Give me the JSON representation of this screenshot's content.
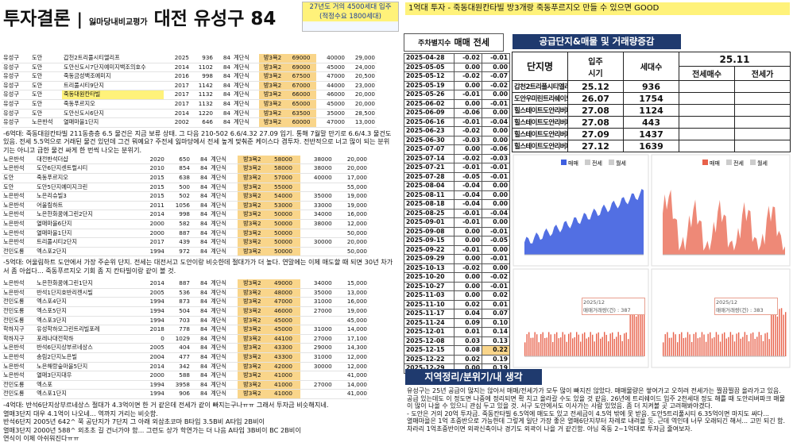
{
  "header": {
    "title": "투자결론",
    "divider": "|",
    "subtitle": "잃마당내비교평가",
    "region": "대전 유성구 84",
    "supply_note": [
      "27년도 거의 4500세대 입주",
      "(적정수요 1800세대)"
    ]
  },
  "banner": "1억대 투자 - 죽동대원칸타빌 방3개랑 죽동푸르지오 만들 수 있으면 GOOD",
  "listings": {
    "tables": [
      {
        "rows": [
          [
            "유성구",
            "도안",
            "갑천2트리풀시티엘리프",
            "2025",
            "936",
            "84",
            "계단식",
            "방3욕2",
            "69000",
            "40000",
            "29,000"
          ],
          [
            "유성구",
            "도안",
            "도안신도시7단지예미지백조의호수",
            "2014",
            "1102",
            "84",
            "계단식",
            "방3욕2",
            "69000",
            "45000",
            "24,000"
          ],
          [
            "유성구",
            "도안",
            "죽동금성백조예미지",
            "2016",
            "998",
            "84",
            "계단식",
            "방3욕2",
            "67500",
            "47000",
            "20,500"
          ],
          [
            "유성구",
            "도안",
            "트리풀시티9단지",
            "2017",
            "1142",
            "84",
            "계단식",
            "방3욕2",
            "67000",
            "44000",
            "23,000"
          ],
          [
            "유성구",
            "도안",
            "죽동대원칸타빌",
            "2017",
            "1132",
            "84",
            "계단식",
            "방3욕2",
            "66000",
            "46000",
            "20,000"
          ],
          [
            "유성구",
            "도안",
            "죽동푸르지오",
            "2017",
            "1132",
            "84",
            "계단식",
            "방3욕2",
            "65000",
            "45000",
            "20,000"
          ],
          [
            "유성구",
            "도안",
            "도안신도시6단지",
            "2014",
            "1220",
            "84",
            "계단식",
            "방3욕2",
            "63500",
            "35000",
            "28,500"
          ],
          [
            "유성구",
            "노은반석",
            "열매마을1단지",
            "2002",
            "646",
            "84",
            "계단식",
            "방3욕2",
            "60000",
            "47000",
            "13,000"
          ]
        ]
      },
      {
        "rows": [
          [
            "노은반석",
            "대전반석더샵",
            "2020",
            "650",
            "84",
            "계단식",
            "방3욕2",
            "58000",
            "38000",
            "20,000"
          ],
          [
            "노은반석",
            "도안6단지센트럴시티",
            "2010",
            "854",
            "84",
            "계단식",
            "방3욕2",
            "58000",
            "38000",
            "20,000"
          ],
          [
            "도안",
            "죽동푸르지오",
            "2015",
            "638",
            "84",
            "계단식",
            "방3욕2",
            "57000",
            "40000",
            "17,000"
          ],
          [
            "도안",
            "도안5단지예미지크린",
            "2015",
            "500",
            "84",
            "계단식",
            "방3욕2",
            "55000",
            "",
            "55,000"
          ],
          [
            "노은반석",
            "노은리슈빌3",
            "2015",
            "502",
            "84",
            "계단식",
            "방3욕2",
            "54000",
            "35000",
            "19,000"
          ],
          [
            "노은반석",
            "어울림하트",
            "2011",
            "1056",
            "84",
            "계단식",
            "방3욕2",
            "53000",
            "33000",
            "19,000"
          ],
          [
            "노은반석",
            "노은한화꿈에그린2단지",
            "2014",
            "998",
            "84",
            "계단식",
            "방3욕2",
            "50000",
            "34000",
            "16,000"
          ],
          [
            "노은반석",
            "열매마을6단지",
            "2000",
            "582",
            "84",
            "계단식",
            "방3욕2",
            "50000",
            "38000",
            "12,000"
          ],
          [
            "노은반석",
            "열매마을1단지",
            "2000",
            "887",
            "84",
            "계단식",
            "방3욕2",
            "50000",
            "",
            "50,000"
          ],
          [
            "노은반석",
            "트리풀시티2단지",
            "2017",
            "439",
            "84",
            "계단식",
            "방3욕2",
            "50000",
            "30000",
            "20,000"
          ],
          [
            "전민도룡",
            "엑스포2단지",
            "1994",
            "972",
            "84",
            "계단식",
            "방3욕2",
            "50000",
            "",
            "50,000"
          ]
        ]
      },
      {
        "rows": [
          [
            "노은반석",
            "노은한화꿈에그린1단지",
            "2014",
            "887",
            "84",
            "계단식",
            "방3욕2",
            "49000",
            "34000",
            "15,000"
          ],
          [
            "노은반석",
            "반석1단지호반리젠시빌",
            "2005",
            "536",
            "84",
            "계단식",
            "방3욕2",
            "48000",
            "35000",
            "13,000"
          ],
          [
            "전민도룡",
            "엑스포4단지",
            "1994",
            "873",
            "84",
            "계단식",
            "방3욕2",
            "47000",
            "31000",
            "16,000"
          ],
          [
            "전민도룡",
            "엑스포5단지",
            "1994",
            "504",
            "84",
            "계단식",
            "방3욕2",
            "46000",
            "27000",
            "19,000"
          ],
          [
            "전민도룡",
            "엑스포3단지",
            "1994",
            "703",
            "84",
            "계단식",
            "방3욕2",
            "45000",
            "",
            "45,000"
          ],
          [
            "학하지구",
            "유성학하모그린트리빌포레",
            "2018",
            "778",
            "84",
            "계단식",
            "방3욕2",
            "45000",
            "31000",
            "14,000"
          ],
          [
            "학하지구",
            "포레나대전학하",
            "0",
            "1029",
            "84",
            "계단식",
            "방3욕2",
            "44100",
            "27000",
            "17,100"
          ],
          [
            "노은반석",
            "반석6단지상부르네상스",
            "2005",
            "404",
            "84",
            "계단식",
            "방3욕2",
            "43300",
            "29000",
            "14,300"
          ],
          [
            "노은반석",
            "송림2단지노은빌",
            "2004",
            "477",
            "84",
            "계단식",
            "방3욕2",
            "43300",
            "31000",
            "12,000"
          ],
          [
            "노은반석",
            "노은해랑숲마을5단지",
            "2014",
            "342",
            "84",
            "계단식",
            "방3욕2",
            "42000",
            "30000",
            "12,000"
          ],
          [
            "노은반석",
            "열매3단지대우",
            "2000",
            "588",
            "84",
            "계단식",
            "방3욕2",
            "41000",
            "",
            "41,000"
          ],
          [
            "전민도룡",
            "엑스포",
            "1994",
            "3958",
            "84",
            "계단식",
            "방3욕2",
            "41000",
            "27000",
            "14,000"
          ],
          [
            "전민도룡",
            "엑스포1단지",
            "1994",
            "906",
            "84",
            "계단식",
            "방3욕2",
            "41000",
            "",
            "41,000"
          ]
        ]
      }
    ],
    "notes": [
      [
        "-6억대: 죽동대원칸타빌 211동층층 6.5 물건은 지금 보류 상태. 그 다음 210-502 6.6/4.32 27.09 입기. 통해 7월말 만기로 6.6/4.3 물건도 있음. 전세 5.5억으로 거래된 물건 있던데 그건 뭐예요? 주전세 잃마당에서 전세 높게 맞춰준 케이스다 겸투자. 전반적으로 너고 많이 되는 분위기는 아니고 급한 물건 싸게 한 번씩 나오는 분위기."
      ],
      [
        "-5억대: 어울림하트 도안에서 가장 주순위 단지. 전세는 대전서고 도안이랑 비슷한데 절대가가 더 높다. 연말에는 이제 매도할 때 되면 30년 차가서 좀 아쉽다... 죽동푸르지오 기회 좀 지 칸타빌이랑 같이 볼 것."
      ],
      [
        "-4억대: 반석6단지상부르네상스 절대가 4.3억이면 한 거 같은데 전세가 같이 빠지는구나ㅠㅠ 그래서 투자금 비슷해지네.",
        "열매3단지 대우 4.1억이 나오네... 역까지 거리는 비슷함.",
        "반석6단지 2005년 642^ 쭉 공단지가 7단지 그 아래 외삼초코마 B타입 3.5B비 A타입 2B비이",
        "열매3단지 2000년 588^ 외초초 길 건너가야 함... 그런도 상가 학연가는 더 나음 A타입 3B비이 BC 2B비이",
        "연식이 이제 아쉬워진다ㅠㅠ"
      ]
    ]
  },
  "weekly": {
    "title": "주차별지수",
    "cols": [
      "매매",
      "전세"
    ],
    "rows": [
      [
        "2025-04-28",
        "-0.02",
        "-0.01"
      ],
      [
        "2025-05-05",
        "0.00",
        "0.00"
      ],
      [
        "2025-05-12",
        "-0.02",
        "-0.07"
      ],
      [
        "2025-05-19",
        "0.00",
        "-0.02"
      ],
      [
        "2025-05-26",
        "-0.01",
        "0.00"
      ],
      [
        "2025-06-02",
        "0.00",
        "-0.01"
      ],
      [
        "2025-06-09",
        "-0.06",
        "0.00"
      ],
      [
        "2025-06-16",
        "-0.01",
        "-0.04"
      ],
      [
        "2025-06-23",
        "-0.02",
        "0.00"
      ],
      [
        "2025-06-30",
        "-0.03",
        "0.00"
      ],
      [
        "2025-07-07",
        "0.00",
        "-0.06"
      ],
      [
        "2025-07-14",
        "-0.02",
        "-0.03"
      ],
      [
        "2025-07-21",
        "-0.01",
        "-0.01"
      ],
      [
        "2025-07-28",
        "-0.05",
        "-0.01"
      ],
      [
        "2025-08-04",
        "-0.04",
        "0.00"
      ],
      [
        "2025-08-11",
        "-0.04",
        "0.00"
      ],
      [
        "2025-08-18",
        "-0.04",
        "0.00"
      ],
      [
        "2025-08-25",
        "-0.01",
        "-0.04"
      ],
      [
        "2025-09-01",
        "-0.01",
        "0.00"
      ],
      [
        "2025-09-08",
        "0.00",
        "-0.01"
      ],
      [
        "2025-09-15",
        "0.00",
        "-0.05"
      ],
      [
        "2025-09-22",
        "-0.01",
        "0.00"
      ],
      [
        "2025-09-29",
        "0.00",
        "-0.01"
      ],
      [
        "2025-10-13",
        "-0.02",
        "0.00"
      ],
      [
        "2025-10-20",
        "0.00",
        "-0.02"
      ],
      [
        "2025-10-27",
        "0.00",
        "-0.01"
      ],
      [
        "2025-11-03",
        "0.00",
        "0.02"
      ],
      [
        "2025-11-10",
        "0.02",
        "0.01"
      ],
      [
        "2025-11-17",
        "0.04",
        "0.07"
      ],
      [
        "2025-11-24",
        "0.09",
        "0.10"
      ],
      [
        "2025-12-01",
        "0.01",
        "0.14"
      ],
      [
        "2025-12-08",
        "0.03",
        "0.13"
      ],
      [
        "2025-12-15",
        "0.08",
        "0.22"
      ],
      [
        "2025-12-22",
        "0.02",
        "0.19"
      ],
      [
        "2025-12-29",
        "0.00",
        "0.19"
      ]
    ]
  },
  "supply": {
    "title": "공급단지&매물 및 거래량증감",
    "headers": [
      "단지명",
      "입주\n시기",
      "세대수",
      "25.11"
    ],
    "subheaders": [
      "전세매수",
      "전세가"
    ],
    "rows": [
      [
        "갑천2트리풀시티엘리프",
        "25.12",
        "936"
      ],
      [
        "도안우미린트리쉐이드",
        "26.07",
        "1754"
      ],
      [
        "힐스테이트도안리버파크1단지",
        "27.08",
        "1124"
      ],
      [
        "힐스테이트도안리버파크2단지",
        "27.08",
        "443"
      ],
      [
        "힐스테이트도안리버파크3단지",
        "27.09",
        "1437"
      ],
      [
        "힐스테이트도안리버파크4단지",
        "27.12",
        "1639"
      ]
    ]
  },
  "charts": {
    "legend": [
      "매매",
      "전세",
      "월세"
    ],
    "annotations": [
      "2025/12\n매매거래량(건) : 387",
      "2025/12\n매매거래량(건) : 383"
    ]
  },
  "summary": {
    "title": "지역정리/분위기/내 생각",
    "paragraphs": [
      "유성구는 25년 공급이 많지는 않아서 매매/전세가가 모두 많이 빠지진 않았다. 매매물량은 쌓여가고 오히려 전세가는 찔끔찔끔 올라가고 있음. 공급 있는데도 이 정도면 나중에 정리되면 확 치고 올라갈 수도 있을 것 같음. 26년에 트리쉐이드 입주 2천세대 정도 해를 때 도안리버파크 매물이 많이 나올 수 있으니 관심 두고 있을 것. 서구 도안에서도 이사가는 사람 있었음. 좀 더 지켜볼 곳 고려해봐야겠다.",
      "- 도안은 거의 20억 투자금. 죽동칸타빌 6.5억에 매도도 있고 전세금이 4.5억 밖에 못 받음. 도안5트리풀시티 6.35억이면 마지도 싸다...",
      "열매마을은 1억 초중반으로 가능한데 그렇게 일단 가장 좋은 열매6단지부터 차례로 내려올 듯. 근데 역인데 너무 오래되긴 해서... 고민 되긴 함. 차라리 1억초중반이면 외곽신축이나 경기도 외곽이 나을 거 같긴함. 아님 죽동 2~1억대로 투자금 줄여보자."
    ]
  }
}
